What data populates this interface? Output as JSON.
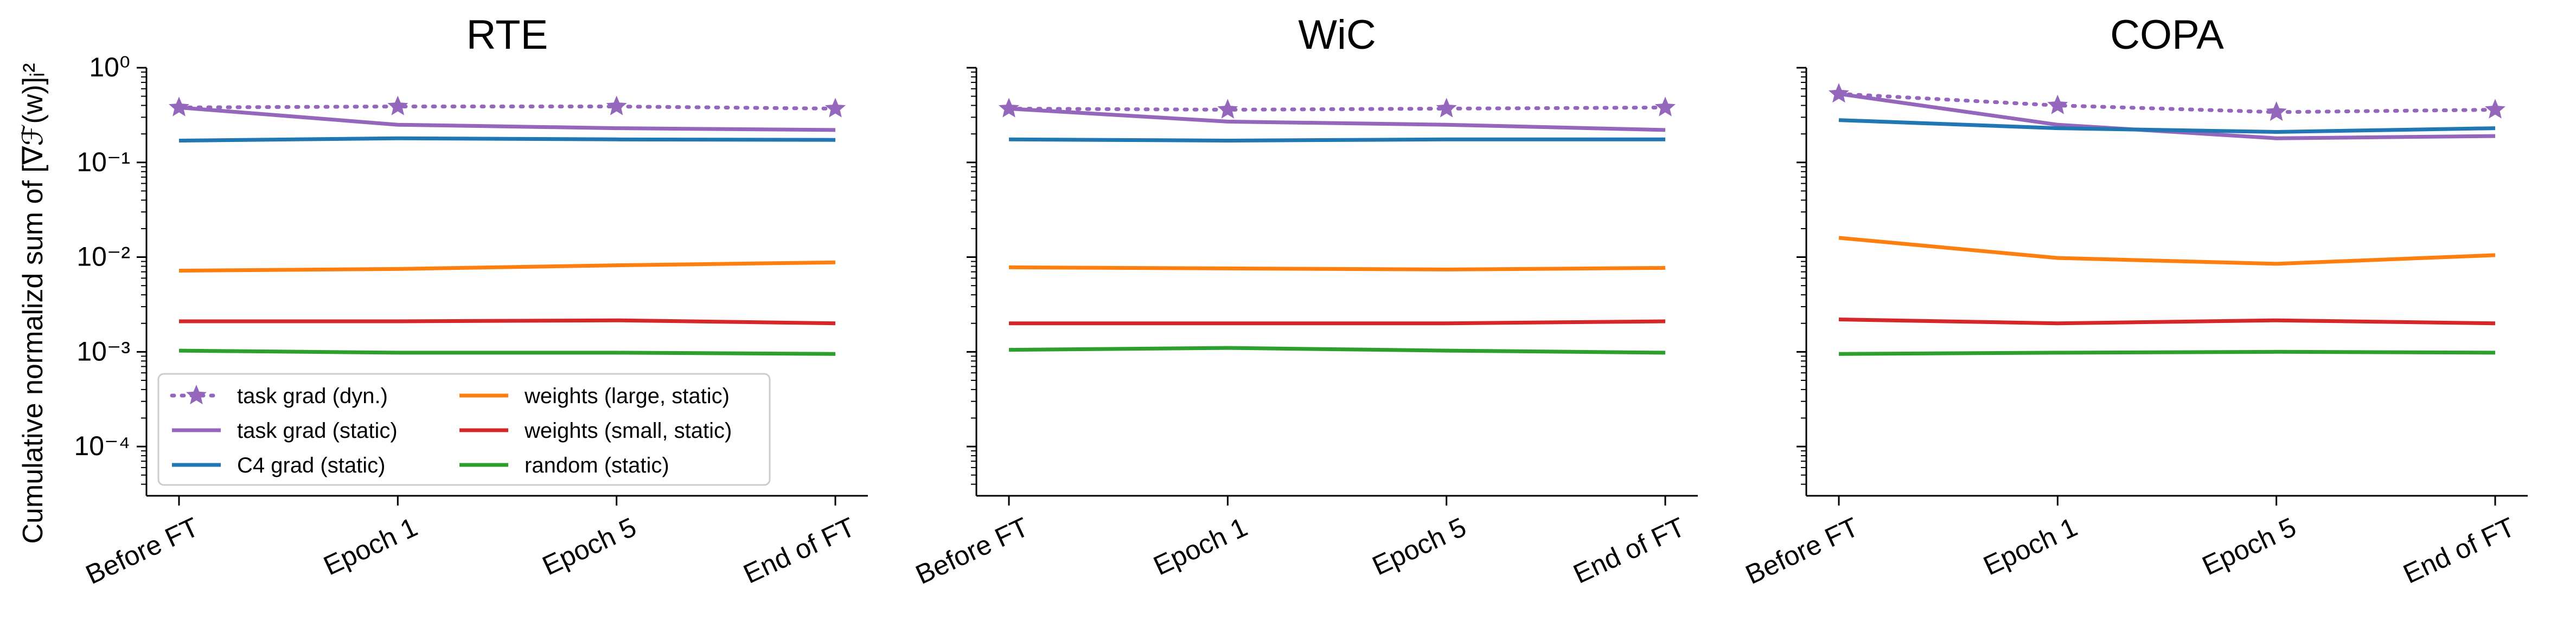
{
  "figure": {
    "ylabel": "Cumulative normalizd sum of [∇ℱ(w)]ᵢ²"
  },
  "chart_data": [
    {
      "type": "line",
      "title": "RTE",
      "categories": [
        "Before FT",
        "Epoch 1",
        "Epoch 5",
        "End of FT"
      ],
      "yscale": "log",
      "ylim": [
        3e-05,
        1.0
      ],
      "yticks": [
        "10^0",
        "10^-1",
        "10^-2",
        "10^-3",
        "10^-4"
      ],
      "series": [
        {
          "name": "task grad (dyn.)",
          "color": "#9467bd",
          "style": "dotted",
          "marker": "star",
          "values": [
            0.38,
            0.39,
            0.39,
            0.37
          ]
        },
        {
          "name": "task grad (static)",
          "color": "#9467bd",
          "style": "solid",
          "values": [
            0.38,
            0.25,
            0.23,
            0.22
          ]
        },
        {
          "name": "C4 grad (static)",
          "color": "#1f77b4",
          "style": "solid",
          "values": [
            0.17,
            0.18,
            0.175,
            0.173
          ]
        },
        {
          "name": "weights (large, static)",
          "color": "#ff7f0e",
          "style": "solid",
          "values": [
            0.0072,
            0.0075,
            0.0082,
            0.0088
          ]
        },
        {
          "name": "weights (small, static)",
          "color": "#d62728",
          "style": "solid",
          "values": [
            0.0021,
            0.0021,
            0.00215,
            0.002
          ]
        },
        {
          "name": "random (static)",
          "color": "#2ca02c",
          "style": "solid",
          "values": [
            0.00103,
            0.00098,
            0.00098,
            0.00095
          ]
        }
      ]
    },
    {
      "type": "line",
      "title": "WiC",
      "categories": [
        "Before FT",
        "Epoch 1",
        "Epoch 5",
        "End of FT"
      ],
      "yscale": "log",
      "ylim": [
        3e-05,
        1.0
      ],
      "series": [
        {
          "name": "task grad (dyn.)",
          "color": "#9467bd",
          "style": "dotted",
          "marker": "star",
          "values": [
            0.37,
            0.36,
            0.37,
            0.38
          ]
        },
        {
          "name": "task grad (static)",
          "color": "#9467bd",
          "style": "solid",
          "values": [
            0.37,
            0.27,
            0.25,
            0.22
          ]
        },
        {
          "name": "C4 grad (static)",
          "color": "#1f77b4",
          "style": "solid",
          "values": [
            0.175,
            0.17,
            0.175,
            0.175
          ]
        },
        {
          "name": "weights (large, static)",
          "color": "#ff7f0e",
          "style": "solid",
          "values": [
            0.0078,
            0.0076,
            0.0074,
            0.0077
          ]
        },
        {
          "name": "weights (small, static)",
          "color": "#d62728",
          "style": "solid",
          "values": [
            0.002,
            0.002,
            0.002,
            0.0021
          ]
        },
        {
          "name": "random (static)",
          "color": "#2ca02c",
          "style": "solid",
          "values": [
            0.00105,
            0.0011,
            0.00103,
            0.00098
          ]
        }
      ]
    },
    {
      "type": "line",
      "title": "COPA",
      "categories": [
        "Before FT",
        "Epoch 1",
        "Epoch 5",
        "End of FT"
      ],
      "yscale": "log",
      "ylim": [
        3e-05,
        1.0
      ],
      "series": [
        {
          "name": "task grad (dyn.)",
          "color": "#9467bd",
          "style": "dotted",
          "marker": "star",
          "values": [
            0.53,
            0.4,
            0.34,
            0.36
          ]
        },
        {
          "name": "task grad (static)",
          "color": "#9467bd",
          "style": "solid",
          "values": [
            0.53,
            0.25,
            0.18,
            0.19
          ]
        },
        {
          "name": "C4 grad (static)",
          "color": "#1f77b4",
          "style": "solid",
          "values": [
            0.28,
            0.23,
            0.21,
            0.23
          ]
        },
        {
          "name": "weights (large, static)",
          "color": "#ff7f0e",
          "style": "solid",
          "values": [
            0.016,
            0.0098,
            0.0085,
            0.0105
          ]
        },
        {
          "name": "weights (small, static)",
          "color": "#d62728",
          "style": "solid",
          "values": [
            0.0022,
            0.002,
            0.00215,
            0.002
          ]
        },
        {
          "name": "random (static)",
          "color": "#2ca02c",
          "style": "solid",
          "values": [
            0.00095,
            0.00098,
            0.001,
            0.00098
          ]
        }
      ]
    }
  ],
  "legend": {
    "placement": "lower-left (RTE panel)",
    "columns": 2
  }
}
